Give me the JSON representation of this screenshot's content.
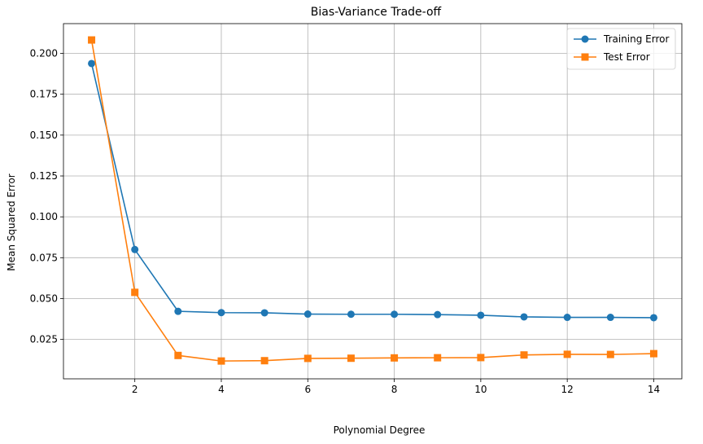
{
  "chart_data": {
    "type": "line",
    "title": "Bias-Variance Trade-off",
    "xlabel": "Polynomial Degree",
    "ylabel": "Mean Squared Error",
    "x": [
      1,
      2,
      3,
      4,
      5,
      6,
      7,
      8,
      9,
      10,
      11,
      12,
      13,
      14
    ],
    "xlim": [
      0.35,
      14.65
    ],
    "ylim": [
      0.0009,
      0.2182
    ],
    "xticks": [
      2,
      4,
      6,
      8,
      10,
      12,
      14
    ],
    "xtick_labels": [
      "2",
      "4",
      "6",
      "8",
      "10",
      "12",
      "14"
    ],
    "yticks": [
      0.025,
      0.05,
      0.075,
      0.1,
      0.125,
      0.15,
      0.175,
      0.2
    ],
    "ytick_labels": [
      "0.025",
      "0.050",
      "0.075",
      "0.100",
      "0.125",
      "0.150",
      "0.175",
      "0.200"
    ],
    "grid": true,
    "legend_position": "top-right",
    "series": [
      {
        "name": "Training Error",
        "color": "#1f77b4",
        "marker": "circle",
        "values": [
          0.1938,
          0.08,
          0.0422,
          0.0414,
          0.0413,
          0.0405,
          0.0404,
          0.0404,
          0.0402,
          0.0398,
          0.0388,
          0.0385,
          0.0385,
          0.0383
        ]
      },
      {
        "name": "Test Error",
        "color": "#ff7f0e",
        "marker": "square",
        "values": [
          0.2082,
          0.0538,
          0.0152,
          0.0118,
          0.012,
          0.0134,
          0.0135,
          0.0137,
          0.0138,
          0.0139,
          0.0155,
          0.0159,
          0.0158,
          0.0163
        ]
      }
    ]
  }
}
